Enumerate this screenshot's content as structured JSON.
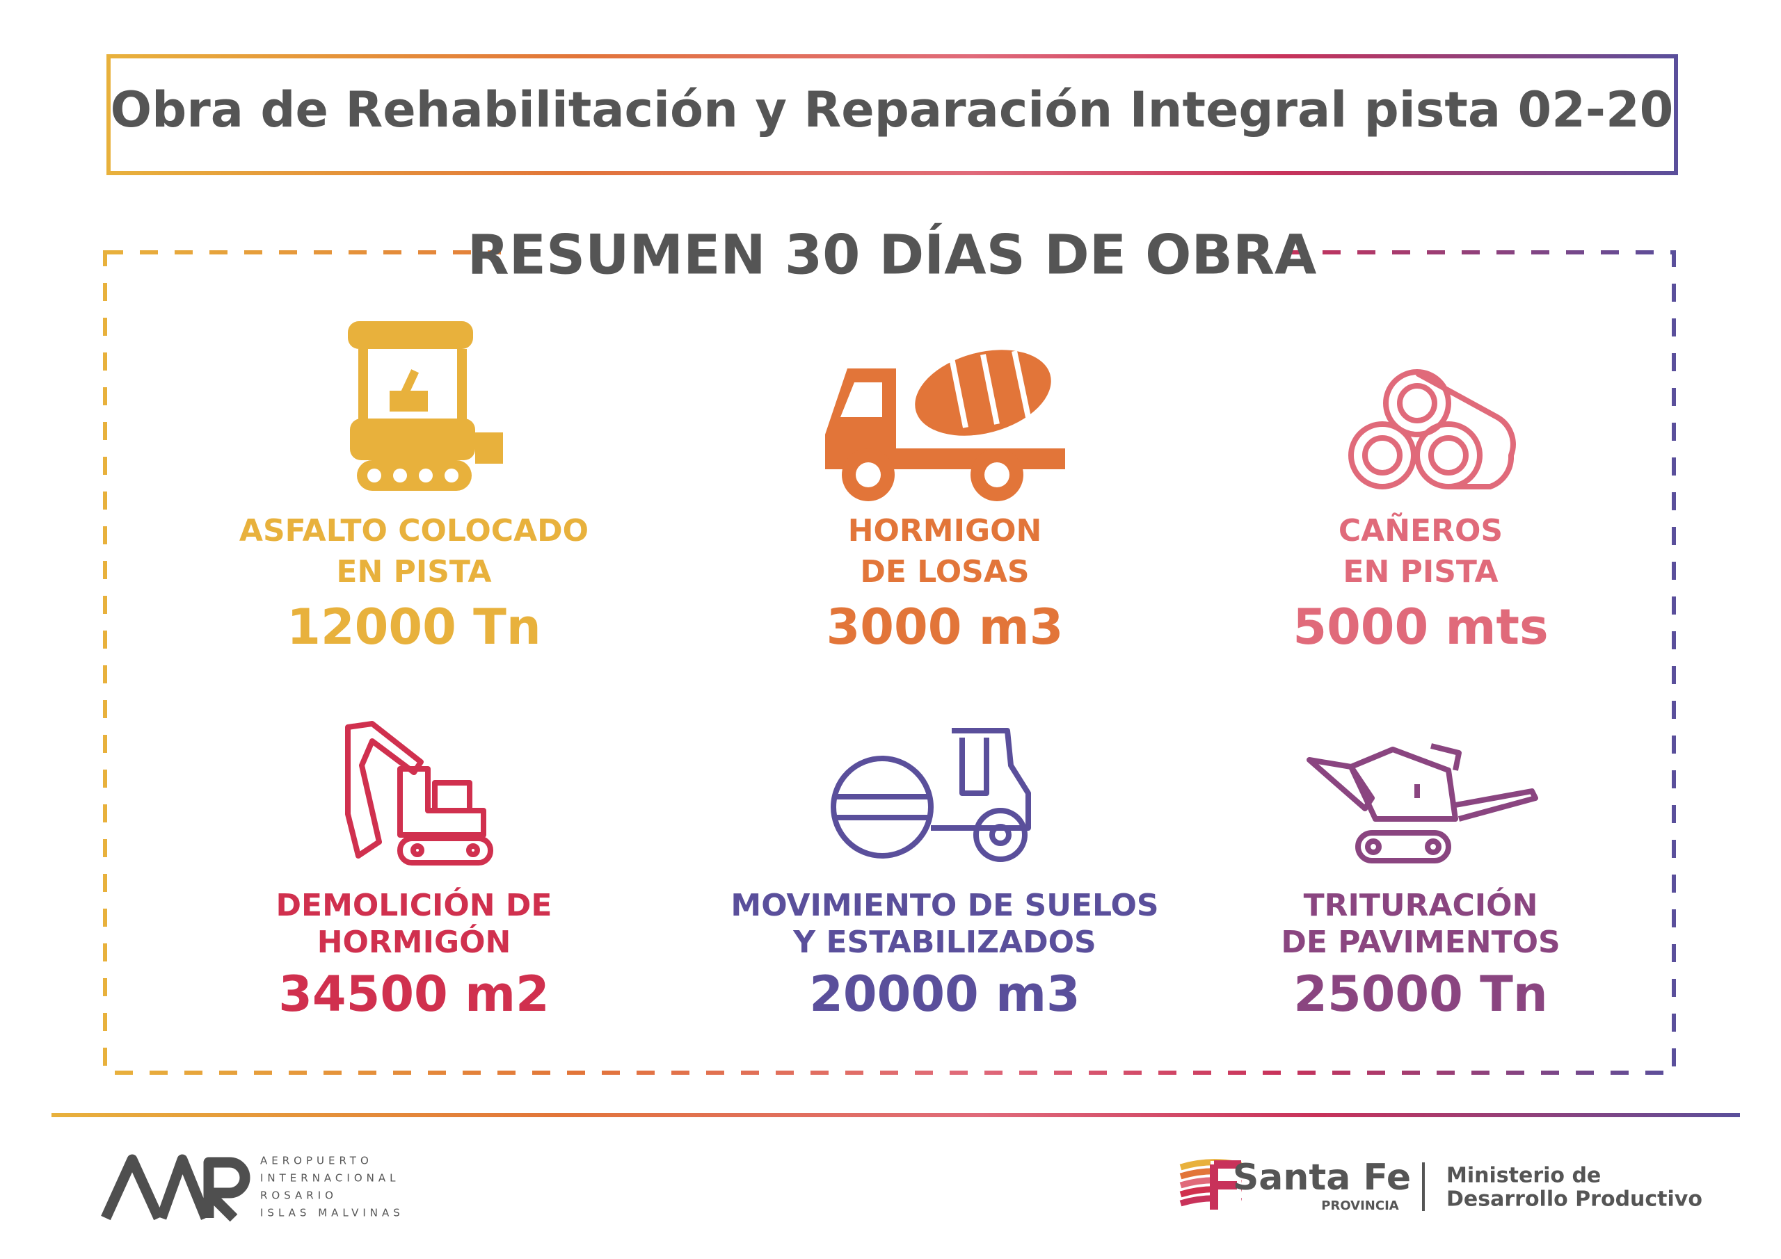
{
  "header": {
    "title": "Obra de Rehabilitación y Reparación Integral pista 02-20"
  },
  "summary": {
    "title": "RESUMEN 30 DÍAS DE OBRA",
    "items": [
      {
        "label": [
          "ASFALTO COLOCADO",
          "EN PISTA"
        ],
        "value": "12000 Tn"
      },
      {
        "label": [
          "HORMIGON",
          "DE LOSAS"
        ],
        "value": "3000 m3"
      },
      {
        "label": [
          "CAÑEROS",
          "EN PISTA"
        ],
        "value": "5000 mts"
      },
      {
        "label": [
          "DEMOLICIÓN DE",
          "HORMIGÓN"
        ],
        "value": "34500 m2"
      },
      {
        "label": [
          "MOVIMIENTO DE SUELOS",
          "Y ESTABILIZADOS"
        ],
        "value": "20000 m3"
      },
      {
        "label": [
          "TRITURACIÓN",
          "DE PAVIMENTOS"
        ],
        "value": "25000 Tn"
      }
    ]
  },
  "footer": {
    "airport": {
      "lines": [
        "AEROPUERTO",
        "INTERNACIONAL",
        "ROSARIO",
        "ISLAS MALVINAS"
      ]
    },
    "province": {
      "name": "Santa Fe",
      "subtitle": "PROVINCIA",
      "ministry": [
        "Ministerio de",
        "Desarrollo Productivo"
      ]
    }
  }
}
